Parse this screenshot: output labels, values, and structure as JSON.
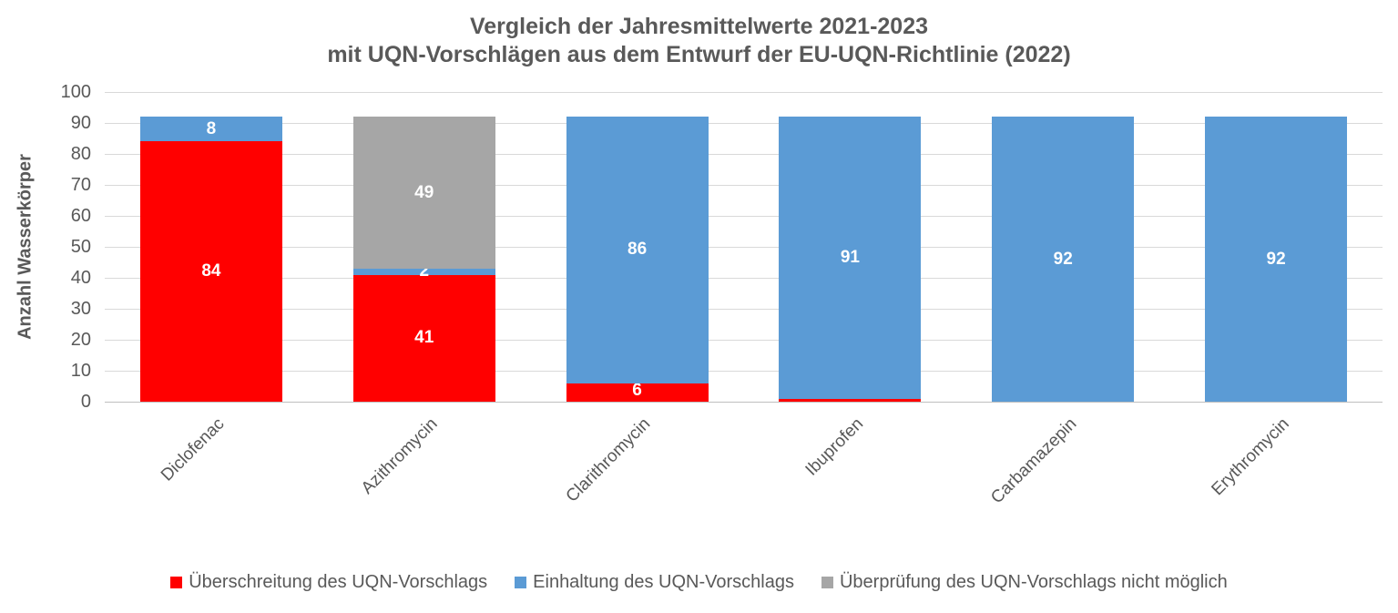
{
  "chart_data": {
    "type": "bar",
    "stacked": true,
    "title": "Vergleich der Jahresmittelwerte 2021-2023 mit UQN-Vorschlägen aus dem Entwurf der EU-UQN-Richtlinie (2022)",
    "title_lines": [
      "Vergleich der Jahresmittelwerte 2021-2023",
      "mit UQN-Vorschlägen aus dem Entwurf der EU-UQN-Richtlinie (2022)"
    ],
    "categories": [
      "Diclofenac",
      "Azithromycin",
      "Clarithromycin",
      "Ibuprofen",
      "Carbamazepin",
      "Erythromycin"
    ],
    "series": [
      {
        "name": "Überschreitung des UQN-Vorschlags",
        "color": "#FF0000",
        "values": [
          84,
          41,
          6,
          1,
          0,
          0
        ]
      },
      {
        "name": "Einhaltung des UQN-Vorschlags",
        "color": "#5B9BD5",
        "values": [
          8,
          2,
          86,
          91,
          92,
          92
        ]
      },
      {
        "name": "Überprüfung des UQN-Vorschlags nicht möglich",
        "color": "#A6A6A6",
        "values": [
          0,
          49,
          0,
          0,
          0,
          0
        ]
      }
    ],
    "xlabel": "",
    "ylabel": "Anzahl Wasserkörper",
    "ylim": [
      0,
      100
    ],
    "ytick_step": 10,
    "yticks": [
      0,
      10,
      20,
      30,
      40,
      50,
      60,
      70,
      80,
      90,
      100
    ],
    "grid": true,
    "data_labels": true,
    "data_label_color": "#FFFFFF",
    "legend_position": "bottom"
  },
  "colors": {
    "text": "#595959",
    "gridline": "#D9D9D9",
    "axis_line": "#BFBFBF",
    "background": "#FFFFFF"
  }
}
